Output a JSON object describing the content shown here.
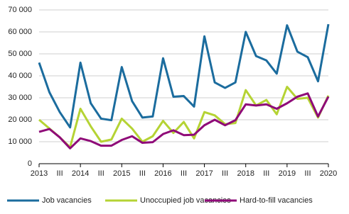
{
  "chart_data": {
    "type": "line",
    "categories": [
      "2013",
      null,
      "III",
      null,
      "2014",
      null,
      "III",
      null,
      "2015",
      null,
      "III",
      null,
      "2016",
      null,
      "III",
      null,
      "2017",
      null,
      "III",
      null,
      "2018",
      null,
      "III",
      null,
      "2019",
      null,
      "III",
      null,
      "2020"
    ],
    "series": [
      {
        "name": "Job vacancies",
        "color": "#1b6c9e",
        "values": [
          46000,
          32500,
          23500,
          16500,
          46000,
          27500,
          20500,
          19800,
          44000,
          28500,
          21000,
          21500,
          48000,
          30500,
          30800,
          26000,
          58000,
          37000,
          34500,
          37000,
          60000,
          49000,
          47000,
          41000,
          63000,
          51000,
          48500,
          37500,
          63500
        ]
      },
      {
        "name": "Unoccupied job vacancies",
        "color": "#b5d334",
        "values": [
          20000,
          16000,
          12000,
          7500,
          25000,
          17000,
          10000,
          11000,
          20500,
          16000,
          10000,
          12500,
          19500,
          14000,
          19000,
          11500,
          23500,
          22000,
          18000,
          18500,
          33500,
          26500,
          29000,
          22500,
          35000,
          29500,
          30000,
          21000,
          31000
        ]
      },
      {
        "name": "Hard-to-fill vacancies",
        "color": "#8f0a78",
        "values": [
          14500,
          15800,
          12000,
          7000,
          11500,
          10300,
          8200,
          8200,
          10800,
          12500,
          9500,
          9800,
          13500,
          15200,
          13000,
          13200,
          17500,
          20000,
          17500,
          19800,
          27000,
          26500,
          27000,
          25000,
          27500,
          30500,
          32000,
          21500,
          30500
        ]
      }
    ],
    "ylim": [
      0,
      70000
    ],
    "yticks": [
      0,
      {
        "value": 10000,
        "label": "10 000"
      },
      {
        "value": 20000,
        "label": "20 000"
      },
      {
        "value": 30000,
        "label": "30 000"
      },
      {
        "value": 40000,
        "label": "40 000"
      },
      {
        "value": 50000,
        "label": "50 000"
      },
      {
        "value": 60000,
        "label": "60 000"
      },
      {
        "value": 70000,
        "label": "70 000"
      }
    ],
    "grid": true
  }
}
